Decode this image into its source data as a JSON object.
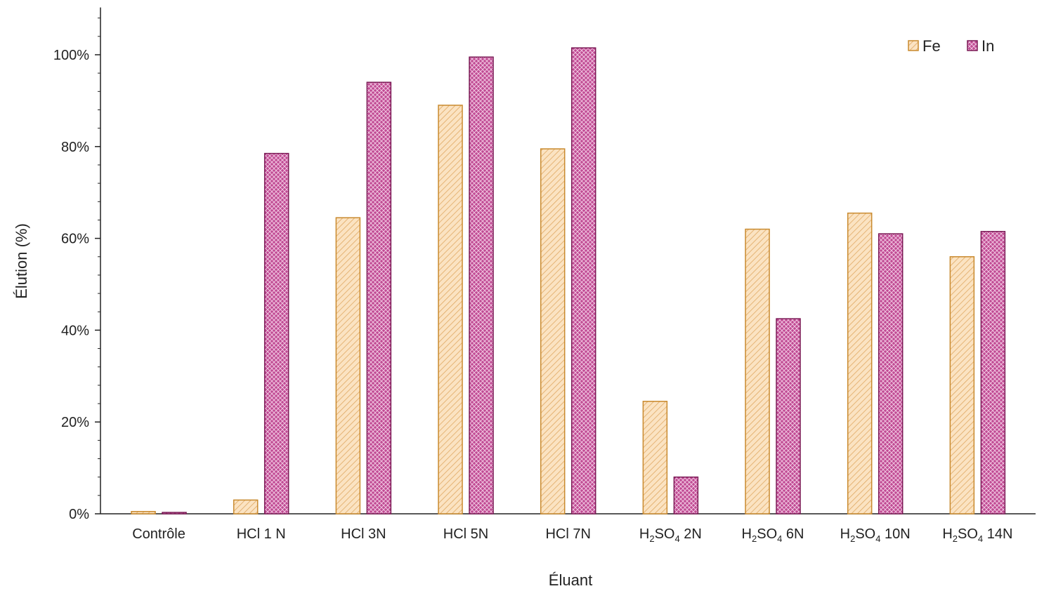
{
  "chart_data": {
    "type": "bar",
    "categories": [
      "Contrôle",
      "HCl 1 N",
      "HCl 3N",
      "HCl 5N",
      "HCl 7N",
      "H2SO4 2N",
      "H2SO4 6N",
      "H2SO4 10N",
      "H2SO4 14N"
    ],
    "series": [
      {
        "name": "Fe",
        "values": [
          0.5,
          3,
          64.5,
          89,
          79.5,
          24.5,
          62,
          65.5,
          56
        ],
        "color": "#f9dcb4",
        "stroke": "#c98a2e",
        "pattern": "diagonal-hatch"
      },
      {
        "name": "In",
        "values": [
          0.3,
          78.5,
          94,
          99.5,
          101.5,
          8,
          42.5,
          61,
          61.5
        ],
        "color": "#b0307f",
        "stroke": "#7a1a55",
        "pattern": "crosshatch"
      }
    ],
    "xlabel": "Éluant",
    "ylabel": "Élution  (%)",
    "ylim": [
      0,
      110
    ],
    "yticks": [
      0,
      20,
      40,
      60,
      80,
      100
    ],
    "ytick_labels": [
      "0%",
      "20%",
      "40%",
      "60%",
      "80%",
      "100%"
    ],
    "legend_position": "top-right",
    "grid": false
  }
}
